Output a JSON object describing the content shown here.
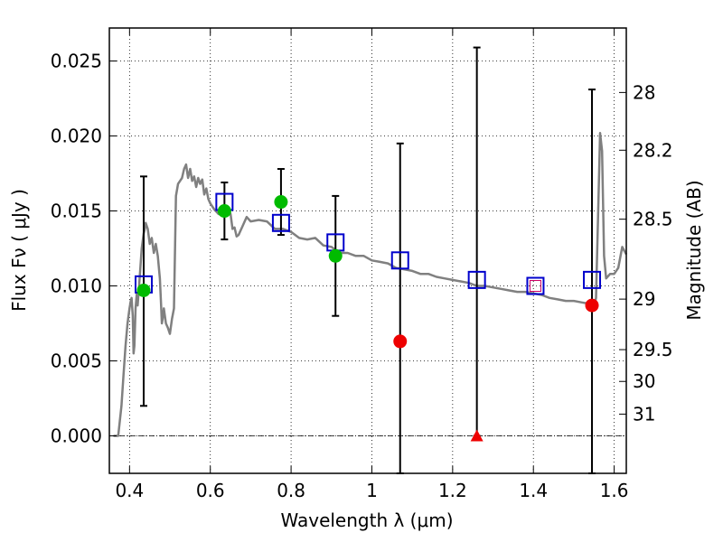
{
  "chart_data": {
    "type": "scatter",
    "title": "",
    "xlabel": "Wavelength  λ (μm)",
    "ylabel": "Flux  Fν  ( μJy )",
    "y2label": "Magnitude (AB)",
    "xlim": [
      0.35,
      1.63
    ],
    "ylim": [
      -0.0025,
      0.0272
    ],
    "grid": true,
    "x_ticks": [
      0.4,
      0.6,
      0.8,
      1.0,
      1.2,
      1.4,
      1.6
    ],
    "x_tick_labels": [
      "0.4",
      "0.6",
      "0.8",
      "1",
      "1.2",
      "1.4",
      "1.6"
    ],
    "y_ticks": [
      0.0,
      0.005,
      0.01,
      0.015,
      0.02,
      0.025
    ],
    "y_tick_labels": [
      "0.000",
      "0.005",
      "0.010",
      "0.015",
      "0.020",
      "0.025"
    ],
    "mag_ticks": [
      {
        "flux": 0.0229,
        "label": "28"
      },
      {
        "flux": 0.01905,
        "label": "28.2"
      },
      {
        "flux": 0.01445,
        "label": "28.5"
      },
      {
        "flux": 0.00912,
        "label": "29"
      },
      {
        "flux": 0.00575,
        "label": "29.5"
      },
      {
        "flux": 0.00363,
        "label": "30"
      },
      {
        "flux": 0.00145,
        "label": "31"
      }
    ],
    "zero_line": 0.0,
    "colors": {
      "sed": "#808080",
      "detection": "#00bb00",
      "nondetection": "#ee0000",
      "model": "#0000cc",
      "model_inner": "#cc0066",
      "errorbar": "#000000"
    },
    "sed_model": {
      "x": [
        0.36,
        0.372,
        0.376,
        0.38,
        0.385,
        0.39,
        0.395,
        0.4,
        0.403,
        0.405,
        0.408,
        0.41,
        0.412,
        0.415,
        0.418,
        0.42,
        0.425,
        0.43,
        0.435,
        0.438,
        0.44,
        0.445,
        0.45,
        0.455,
        0.46,
        0.465,
        0.47,
        0.475,
        0.478,
        0.48,
        0.482,
        0.485,
        0.49,
        0.495,
        0.5,
        0.505,
        0.51,
        0.515,
        0.52,
        0.525,
        0.53,
        0.535,
        0.54,
        0.545,
        0.55,
        0.555,
        0.56,
        0.565,
        0.57,
        0.575,
        0.58,
        0.585,
        0.59,
        0.595,
        0.6,
        0.61,
        0.62,
        0.63,
        0.64,
        0.65,
        0.655,
        0.66,
        0.665,
        0.67,
        0.68,
        0.69,
        0.7,
        0.72,
        0.74,
        0.76,
        0.78,
        0.8,
        0.82,
        0.84,
        0.86,
        0.88,
        0.9,
        0.92,
        0.94,
        0.96,
        0.98,
        1.0,
        1.02,
        1.04,
        1.06,
        1.08,
        1.1,
        1.12,
        1.14,
        1.16,
        1.18,
        1.2,
        1.22,
        1.24,
        1.26,
        1.28,
        1.3,
        1.32,
        1.34,
        1.36,
        1.38,
        1.4,
        1.42,
        1.44,
        1.46,
        1.48,
        1.5,
        1.52,
        1.54,
        1.55,
        1.555,
        1.56,
        1.565,
        1.57,
        1.575,
        1.58,
        1.59,
        1.6,
        1.61,
        1.62,
        1.63
      ],
      "y": [
        0.0,
        0.0,
        0.001,
        0.002,
        0.004,
        0.006,
        0.0075,
        0.0085,
        0.009,
        0.0092,
        0.008,
        0.0055,
        0.006,
        0.0085,
        0.0095,
        0.0087,
        0.0105,
        0.0125,
        0.0135,
        0.0138,
        0.0142,
        0.0138,
        0.0128,
        0.0132,
        0.0122,
        0.0128,
        0.012,
        0.0105,
        0.0088,
        0.0075,
        0.0078,
        0.0085,
        0.0075,
        0.0072,
        0.0068,
        0.0078,
        0.0085,
        0.016,
        0.0168,
        0.017,
        0.0172,
        0.0178,
        0.0181,
        0.0172,
        0.0178,
        0.017,
        0.0173,
        0.0166,
        0.0172,
        0.0168,
        0.0171,
        0.0161,
        0.0165,
        0.0158,
        0.0155,
        0.0151,
        0.0148,
        0.0147,
        0.0153,
        0.0148,
        0.0138,
        0.0139,
        0.0133,
        0.0134,
        0.014,
        0.0146,
        0.0143,
        0.0144,
        0.0143,
        0.0138,
        0.0138,
        0.0136,
        0.0132,
        0.0131,
        0.0132,
        0.0127,
        0.0126,
        0.0122,
        0.0122,
        0.012,
        0.012,
        0.0117,
        0.0116,
        0.0115,
        0.0112,
        0.0111,
        0.011,
        0.0108,
        0.0108,
        0.0106,
        0.0105,
        0.0104,
        0.0103,
        0.0102,
        0.01,
        0.01,
        0.0099,
        0.0098,
        0.0097,
        0.0096,
        0.0096,
        0.0095,
        0.0094,
        0.0092,
        0.0091,
        0.009,
        0.009,
        0.0089,
        0.0088,
        0.0086,
        0.0092,
        0.0145,
        0.0202,
        0.019,
        0.012,
        0.0105,
        0.0108,
        0.0108,
        0.0112,
        0.0126,
        0.0121
      ]
    },
    "errorbars": [
      {
        "x": 0.435,
        "low": 0.002,
        "high": 0.0173
      },
      {
        "x": 0.635,
        "low": 0.0131,
        "high": 0.0169
      },
      {
        "x": 0.775,
        "low": 0.0134,
        "high": 0.0178
      },
      {
        "x": 0.91,
        "low": 0.008,
        "high": 0.016
      },
      {
        "x": 1.07,
        "low": -0.0025,
        "high": 0.0195
      },
      {
        "x": 1.26,
        "low": 0.0,
        "high": 0.0259
      },
      {
        "x": 1.545,
        "low": -0.0025,
        "high": 0.0231
      }
    ],
    "model_fluxes": {
      "x": [
        0.435,
        0.635,
        0.775,
        0.91,
        1.07,
        1.26,
        1.405,
        1.545
      ],
      "y": [
        0.0101,
        0.0156,
        0.0142,
        0.0129,
        0.0117,
        0.0104,
        0.01,
        0.0104
      ]
    },
    "detections": {
      "x": [
        0.435,
        0.635,
        0.775,
        0.91
      ],
      "y": [
        0.0097,
        0.015,
        0.0156,
        0.012
      ]
    },
    "non_detections": {
      "x": [
        1.07,
        1.545
      ],
      "y": [
        0.0063,
        0.0087
      ]
    },
    "upper_limit_marker": {
      "x": 1.26,
      "y": 0.0
    },
    "highlighted_model": {
      "x": 1.405,
      "y": 0.01
    }
  }
}
